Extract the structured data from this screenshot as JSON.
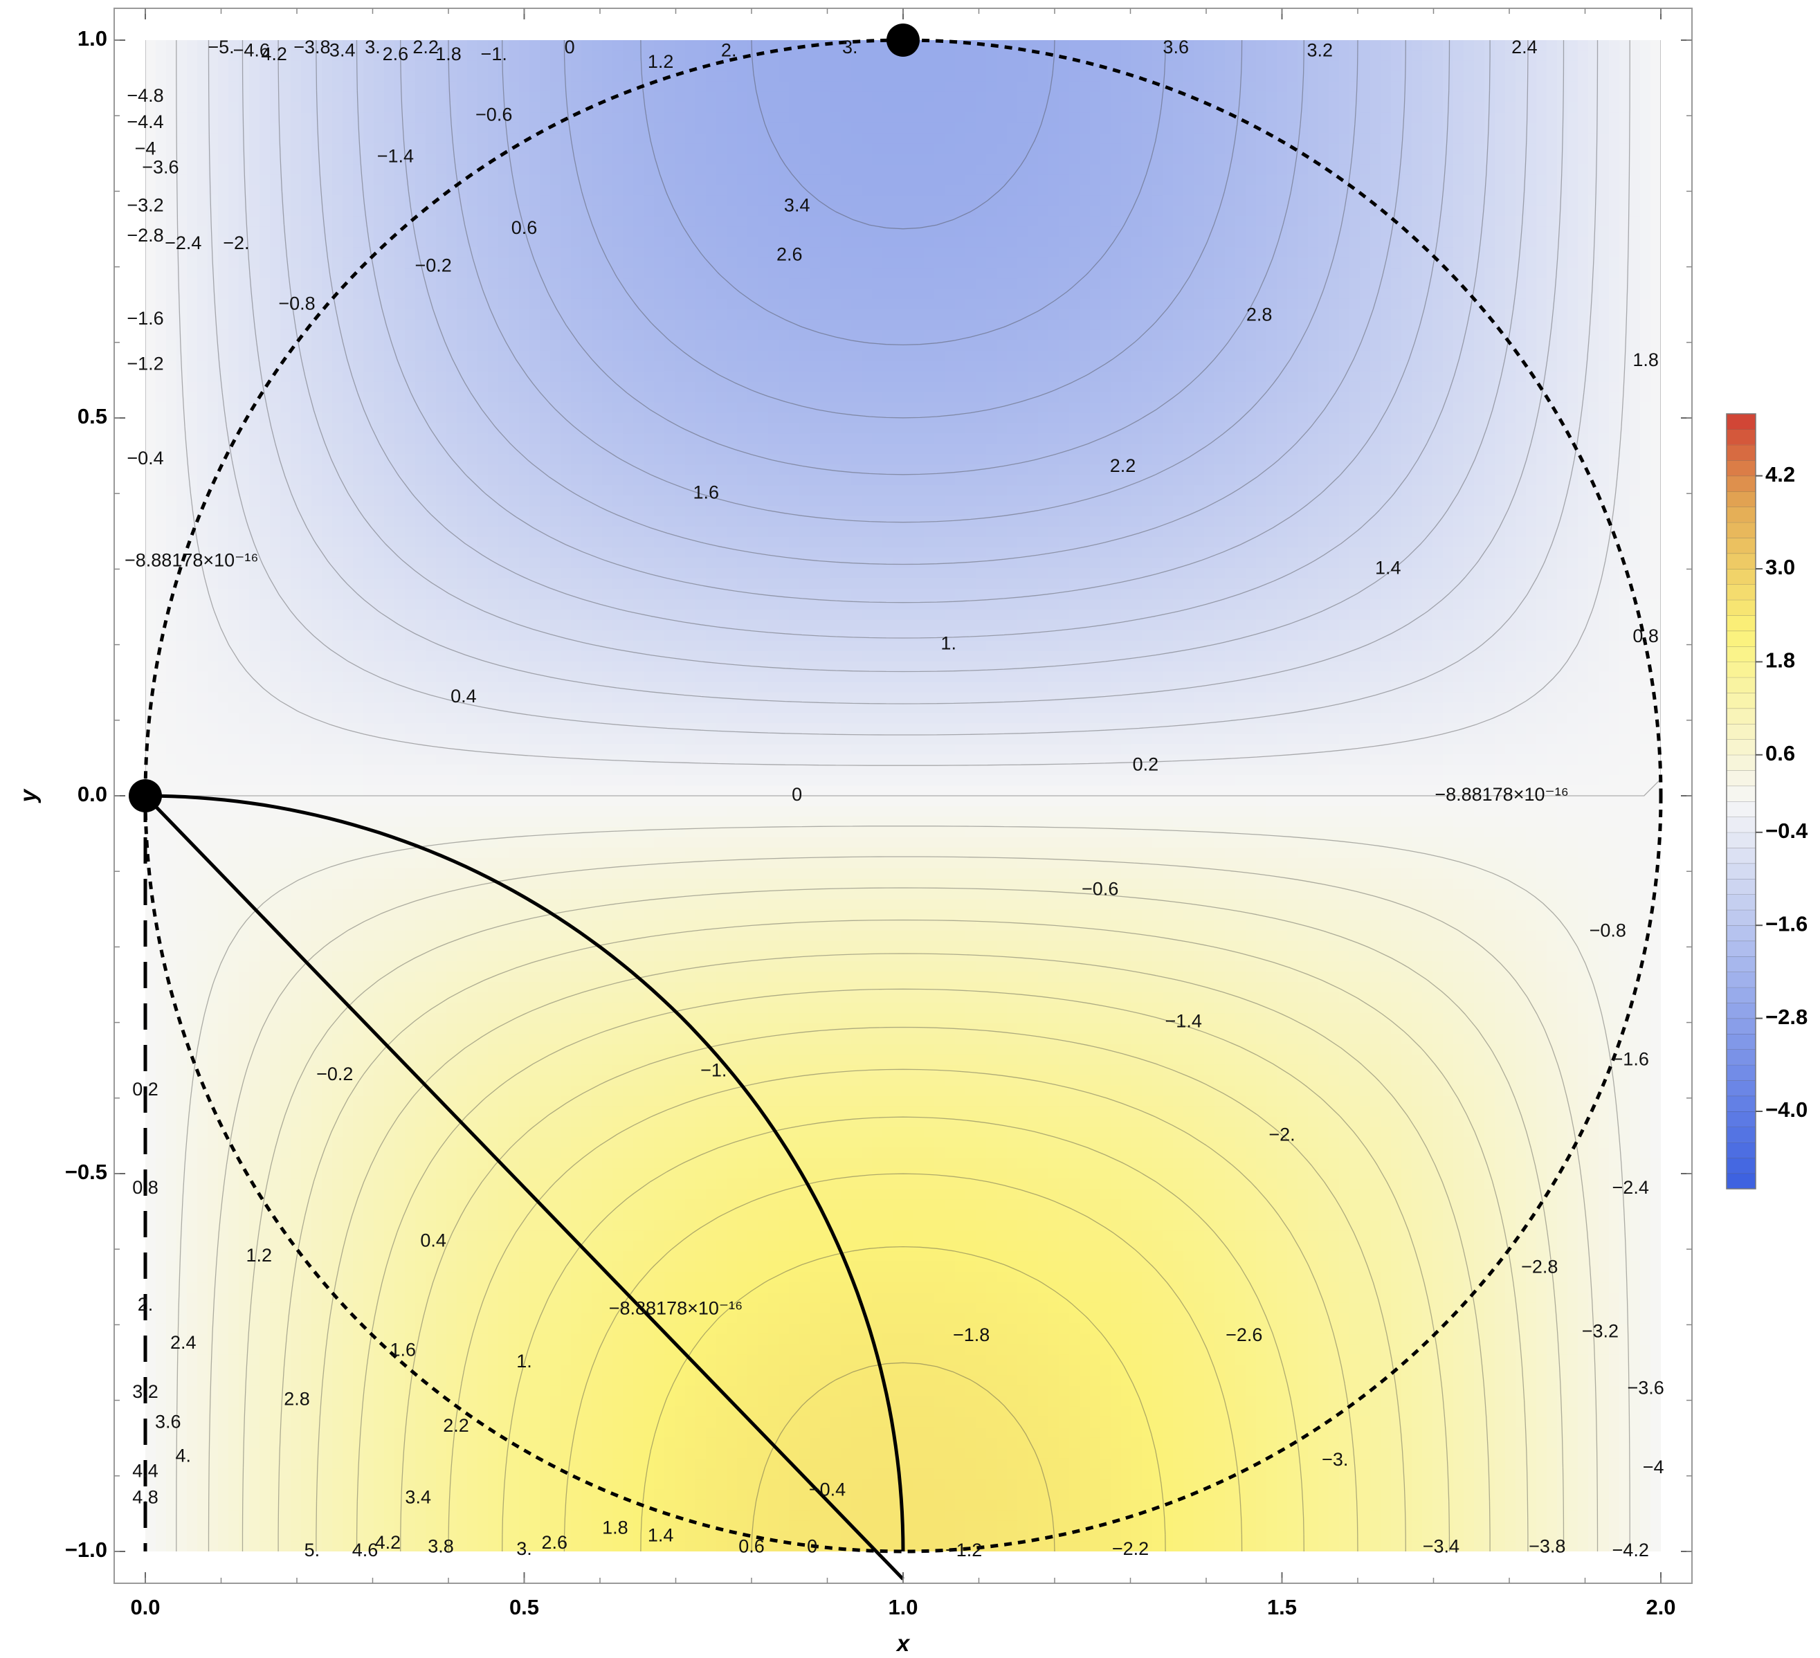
{
  "chart_data": {
    "type": "contour",
    "title": "",
    "xlabel": "x",
    "ylabel": "y",
    "xlim": [
      0,
      2
    ],
    "ylim": [
      -1,
      1
    ],
    "x_ticks": [
      {
        "value": 0,
        "label": "0.0"
      },
      {
        "value": 0.5,
        "label": "0.5"
      },
      {
        "value": 1,
        "label": "1.0"
      },
      {
        "value": 1.5,
        "label": "1.5"
      },
      {
        "value": 2,
        "label": "2.0"
      }
    ],
    "y_ticks": [
      {
        "value": -1,
        "label": "−1.0"
      },
      {
        "value": -0.5,
        "label": "−0.5"
      },
      {
        "value": 0,
        "label": "0.0"
      },
      {
        "value": 0.5,
        "label": "0.5"
      },
      {
        "value": 1,
        "label": "1.0"
      }
    ],
    "colorbar": {
      "range": [
        -5,
        5
      ],
      "tick_labels": [
        {
          "value": 4.2,
          "label": "4.2"
        },
        {
          "value": 3.0,
          "label": "3.0"
        },
        {
          "value": 1.8,
          "label": "1.8"
        },
        {
          "value": 0.6,
          "label": "0.6"
        },
        {
          "value": -0.4,
          "label": "−0.4"
        },
        {
          "value": -1.6,
          "label": "−1.6"
        },
        {
          "value": -2.8,
          "label": "−2.8"
        },
        {
          "value": -4.0,
          "label": "−4.0"
        }
      ],
      "colors": {
        "low": "#3a5fe0",
        "neutral": "#f6f6f6",
        "mid_high": "#fbf279",
        "high_mid": "#e3ab55",
        "high": "#cf3d33"
      }
    },
    "contour_step": 0.2,
    "contour_labels": [
      {
        "x": 0.1,
        "y": 0.995,
        "text": "−5."
      },
      {
        "x": 0.14,
        "y": 0.985,
        "text": "−4.6"
      },
      {
        "x": 0.17,
        "y": 0.98,
        "text": "4.2"
      },
      {
        "x": 0.22,
        "y": 0.99,
        "text": "−3.8"
      },
      {
        "x": 0.26,
        "y": 0.985,
        "text": "3.4"
      },
      {
        "x": 0.3,
        "y": 0.99,
        "text": "3."
      },
      {
        "x": 0.33,
        "y": 0.98,
        "text": "2.6"
      },
      {
        "x": 0.37,
        "y": 0.99,
        "text": "2.2"
      },
      {
        "x": 0.4,
        "y": 0.98,
        "text": "1.8"
      },
      {
        "x": 0.46,
        "y": 0.98,
        "text": "−1."
      },
      {
        "x": 0.56,
        "y": 0.99,
        "text": "0"
      },
      {
        "x": 0.68,
        "y": 0.97,
        "text": "1.2"
      },
      {
        "x": 0.77,
        "y": 0.985,
        "text": "2."
      },
      {
        "x": 0.93,
        "y": 0.995,
        "text": "3."
      },
      {
        "x": 1.36,
        "y": 0.995,
        "text": "3.6"
      },
      {
        "x": 1.55,
        "y": 0.985,
        "text": "3.2"
      },
      {
        "x": 1.82,
        "y": 0.99,
        "text": "2.4"
      },
      {
        "x": 0.0,
        "y": 0.925,
        "text": "−4.8"
      },
      {
        "x": 0.0,
        "y": 0.89,
        "text": "−4.4"
      },
      {
        "x": 0.0,
        "y": 0.855,
        "text": "−4"
      },
      {
        "x": 0.02,
        "y": 0.83,
        "text": "−3.6"
      },
      {
        "x": 0.0,
        "y": 0.78,
        "text": "−3.2"
      },
      {
        "x": 0.0,
        "y": 0.74,
        "text": "−2.8"
      },
      {
        "x": 0.05,
        "y": 0.73,
        "text": "−2.4"
      },
      {
        "x": 0.12,
        "y": 0.73,
        "text": "−2."
      },
      {
        "x": 0.46,
        "y": 0.9,
        "text": "−0.6"
      },
      {
        "x": 0.33,
        "y": 0.845,
        "text": "−1.4"
      },
      {
        "x": 0.5,
        "y": 0.75,
        "text": "0.6"
      },
      {
        "x": 0.38,
        "y": 0.7,
        "text": "−0.2"
      },
      {
        "x": 0.2,
        "y": 0.65,
        "text": "−0.8"
      },
      {
        "x": 0.0,
        "y": 0.63,
        "text": "−1.6"
      },
      {
        "x": 0.0,
        "y": 0.57,
        "text": "−1.2"
      },
      {
        "x": 0.0,
        "y": 0.445,
        "text": "−0.4"
      },
      {
        "x": 0.0,
        "y": 0.31,
        "text": "−8.88178×10⁻¹⁶"
      },
      {
        "x": 0.86,
        "y": 0.78,
        "text": "3.4"
      },
      {
        "x": 0.85,
        "y": 0.715,
        "text": "2.6"
      },
      {
        "x": 1.47,
        "y": 0.635,
        "text": "2.8"
      },
      {
        "x": 1.98,
        "y": 0.575,
        "text": "1.8"
      },
      {
        "x": 1.29,
        "y": 0.435,
        "text": "2.2"
      },
      {
        "x": 0.74,
        "y": 0.4,
        "text": "1.6"
      },
      {
        "x": 1.64,
        "y": 0.3,
        "text": "1.4"
      },
      {
        "x": 1.98,
        "y": 0.21,
        "text": "0.8"
      },
      {
        "x": 1.06,
        "y": 0.2,
        "text": "1."
      },
      {
        "x": 0.42,
        "y": 0.13,
        "text": "0.4"
      },
      {
        "x": 1.32,
        "y": 0.04,
        "text": "0.2"
      },
      {
        "x": 0.86,
        "y": 0.0,
        "text": "0"
      },
      {
        "x": 1.79,
        "y": 0.0,
        "text": "−8.88178×10⁻¹⁶"
      },
      {
        "x": 1.26,
        "y": -0.125,
        "text": "−0.6"
      },
      {
        "x": 1.93,
        "y": -0.18,
        "text": "−0.8"
      },
      {
        "x": 1.37,
        "y": -0.3,
        "text": "−1.4"
      },
      {
        "x": 1.96,
        "y": -0.35,
        "text": "−1.6"
      },
      {
        "x": 0.75,
        "y": -0.365,
        "text": "−1."
      },
      {
        "x": 0.25,
        "y": -0.37,
        "text": "−0.2"
      },
      {
        "x": 0.0,
        "y": -0.39,
        "text": "0.2"
      },
      {
        "x": 1.5,
        "y": -0.45,
        "text": "−2."
      },
      {
        "x": 1.96,
        "y": -0.52,
        "text": "−2.4"
      },
      {
        "x": 0.0,
        "y": -0.52,
        "text": "0.8"
      },
      {
        "x": 0.38,
        "y": -0.59,
        "text": "0.4"
      },
      {
        "x": 0.15,
        "y": -0.61,
        "text": "1.2"
      },
      {
        "x": 1.84,
        "y": -0.625,
        "text": "−2.8"
      },
      {
        "x": 0.0,
        "y": -0.675,
        "text": "2."
      },
      {
        "x": 0.7,
        "y": -0.68,
        "text": "−8.88178×10⁻¹⁶"
      },
      {
        "x": 1.92,
        "y": -0.71,
        "text": "−3.2"
      },
      {
        "x": 1.09,
        "y": -0.715,
        "text": "−1.8"
      },
      {
        "x": 1.45,
        "y": -0.715,
        "text": "−2.6"
      },
      {
        "x": 0.05,
        "y": -0.725,
        "text": "2.4"
      },
      {
        "x": 0.34,
        "y": -0.735,
        "text": "1.6"
      },
      {
        "x": 0.5,
        "y": -0.75,
        "text": "1."
      },
      {
        "x": 1.98,
        "y": -0.785,
        "text": "−3.6"
      },
      {
        "x": 0.0,
        "y": -0.79,
        "text": "3.2"
      },
      {
        "x": 0.2,
        "y": -0.8,
        "text": "2.8"
      },
      {
        "x": 0.03,
        "y": -0.83,
        "text": "3.6"
      },
      {
        "x": 0.41,
        "y": -0.835,
        "text": "2.2"
      },
      {
        "x": 0.05,
        "y": -0.875,
        "text": "4."
      },
      {
        "x": 1.57,
        "y": -0.88,
        "text": "−3."
      },
      {
        "x": 1.99,
        "y": -0.89,
        "text": "−4"
      },
      {
        "x": 0.0,
        "y": -0.895,
        "text": "4.4"
      },
      {
        "x": 0.0,
        "y": -0.93,
        "text": "4.8"
      },
      {
        "x": 0.36,
        "y": -0.93,
        "text": "3.4"
      },
      {
        "x": 0.9,
        "y": -0.92,
        "text": "−0.4"
      },
      {
        "x": 0.62,
        "y": -0.97,
        "text": "1.8"
      },
      {
        "x": 0.68,
        "y": -0.98,
        "text": "1.4"
      },
      {
        "x": 0.54,
        "y": -0.99,
        "text": "2.6"
      },
      {
        "x": 0.32,
        "y": -0.99,
        "text": "4.2"
      },
      {
        "x": 0.39,
        "y": -0.995,
        "text": "3.8"
      },
      {
        "x": 0.5,
        "y": -0.998,
        "text": "3."
      },
      {
        "x": 0.8,
        "y": -0.995,
        "text": "0.6"
      },
      {
        "x": 0.88,
        "y": -0.995,
        "text": "0"
      },
      {
        "x": 0.22,
        "y": -1.0,
        "text": "5."
      },
      {
        "x": 0.29,
        "y": -1.0,
        "text": "4.6"
      },
      {
        "x": 1.08,
        "y": -1.0,
        "text": "−1.2"
      },
      {
        "x": 1.3,
        "y": -0.998,
        "text": "−2.2"
      },
      {
        "x": 1.71,
        "y": -0.995,
        "text": "−3.4"
      },
      {
        "x": 1.85,
        "y": -0.995,
        "text": "−3.8"
      },
      {
        "x": 1.96,
        "y": -1.0,
        "text": "−4.2"
      }
    ],
    "markers": [
      {
        "x": 0,
        "y": 0
      },
      {
        "x": 1,
        "y": 1
      }
    ],
    "overlays": [
      {
        "kind": "dashed-circle",
        "center": [
          1,
          0
        ],
        "radius": 1
      },
      {
        "kind": "solid-arc",
        "center": [
          0,
          -1
        ],
        "radius": 1,
        "from_deg": 0,
        "to_deg": 90
      },
      {
        "kind": "long-dashed-line",
        "from": [
          0,
          0
        ],
        "to": [
          0,
          -1
        ]
      }
    ]
  }
}
